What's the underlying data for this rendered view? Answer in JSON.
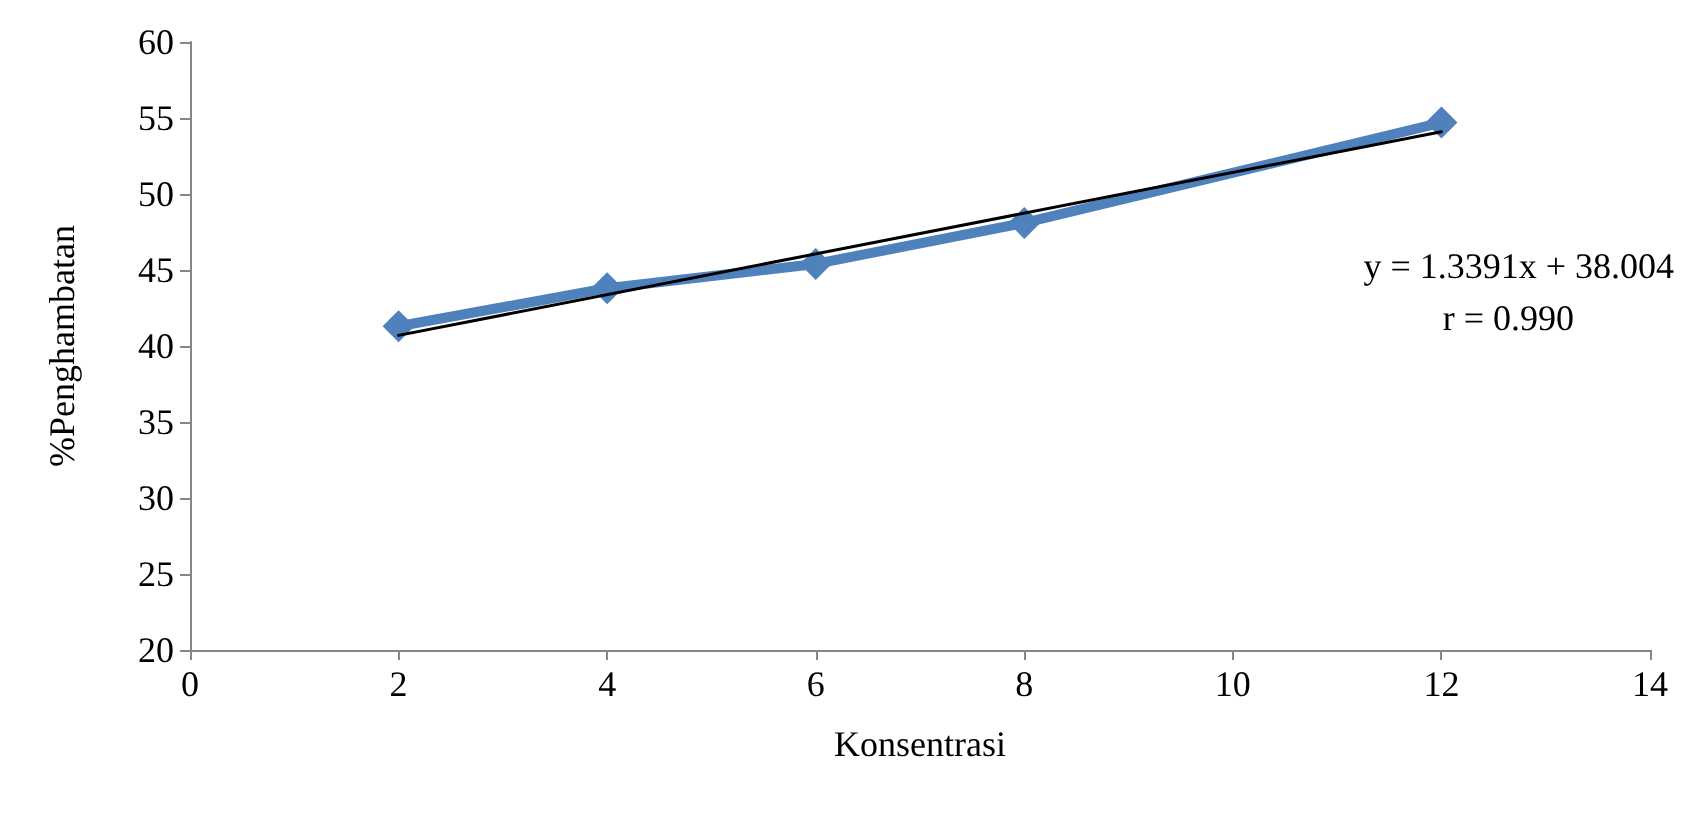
{
  "chart_data": {
    "type": "line",
    "xlabel": "Konsentrasi",
    "ylabel": "%Penghambatan",
    "xlim": [
      0,
      14
    ],
    "xticks": [
      0,
      2,
      4,
      6,
      8,
      10,
      12,
      14
    ],
    "ylim": [
      20,
      60
    ],
    "yticks": [
      20,
      25,
      30,
      35,
      40,
      45,
      50,
      55,
      60
    ],
    "grid": false,
    "series": [
      {
        "color": "#4f81bd",
        "x": [
          2,
          4,
          6,
          8,
          12
        ],
        "values": [
          41.3,
          43.8,
          45.4,
          48.1,
          54.7
        ],
        "marker": "diamond"
      },
      {
        "color": "#000000",
        "x": [
          2,
          12
        ],
        "values": [
          40.7,
          54.1
        ],
        "marker": "none"
      }
    ],
    "annotations": [
      "y = 1.3391x + 38.004",
      "r = 0.990"
    ]
  }
}
